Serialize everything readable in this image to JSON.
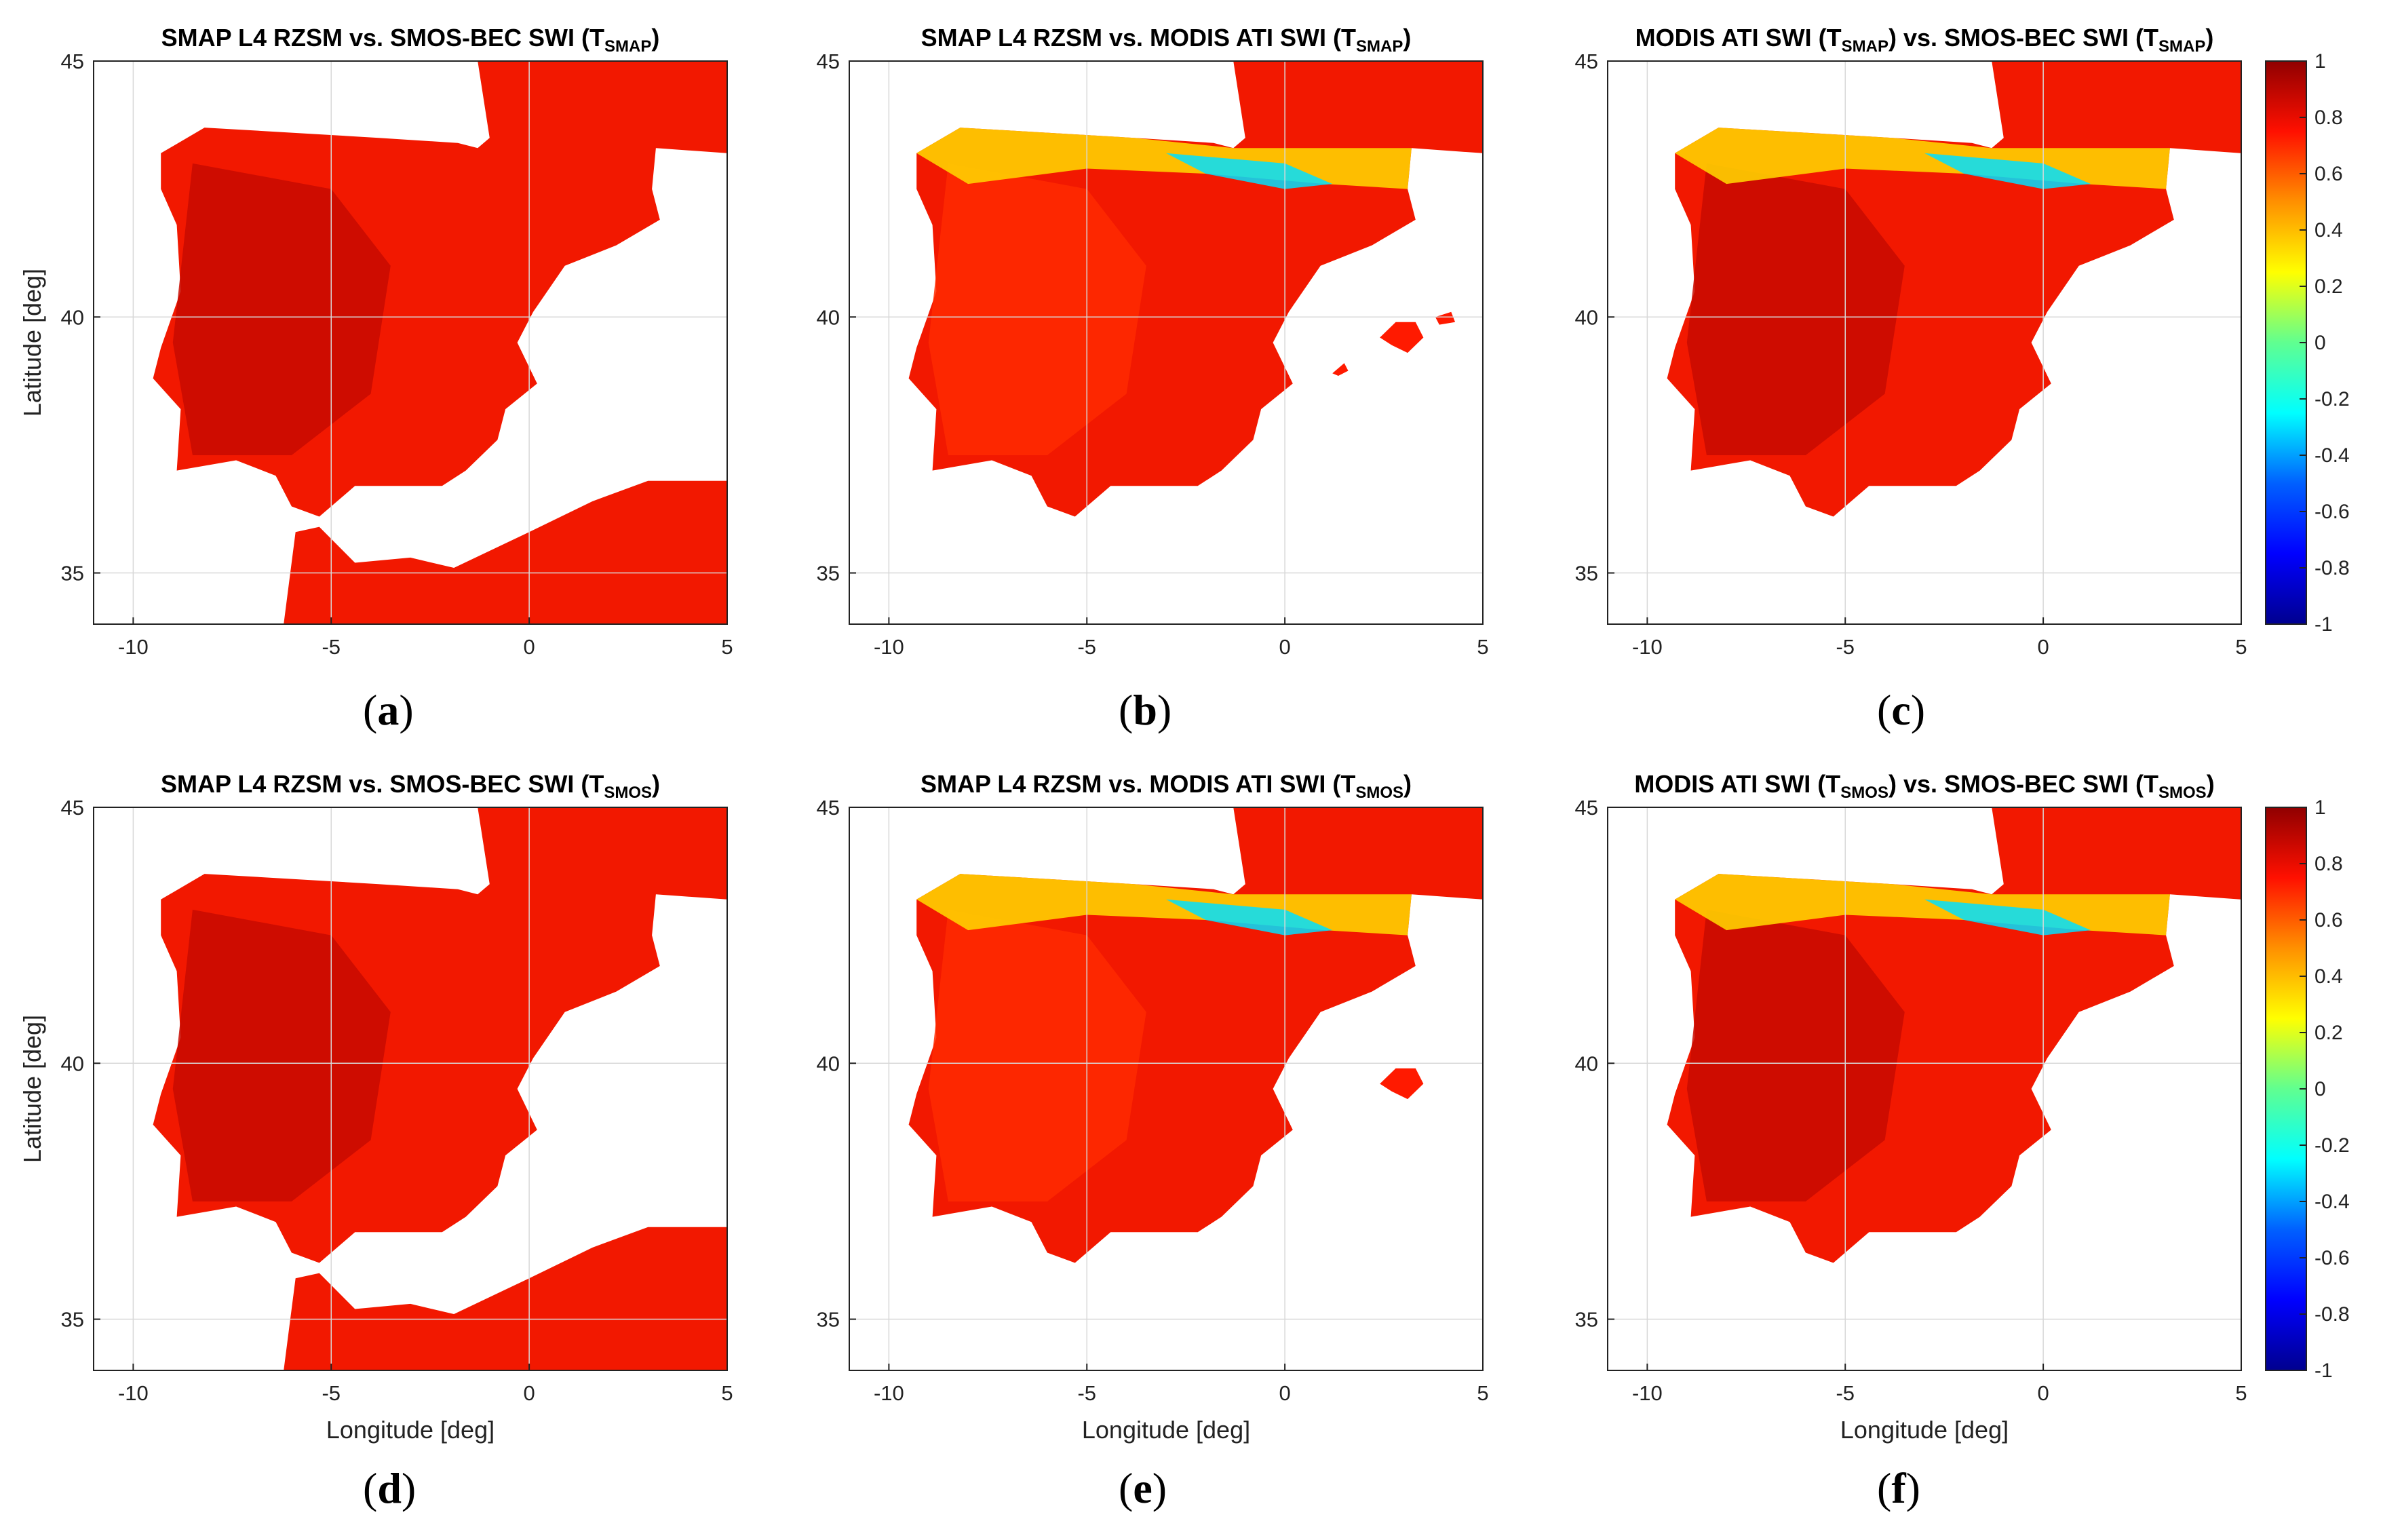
{
  "figure": {
    "panels": [
      {
        "id": "a",
        "letter": "a",
        "title_parts": [
          "SMAP L4 RZSM vs. SMOS-BEC SWI (T",
          "SMAP",
          ")"
        ],
        "show_ylabel": true,
        "show_xlabel": false,
        "show_colorbar": false
      },
      {
        "id": "b",
        "letter": "b",
        "title_parts": [
          "SMAP L4 RZSM vs. MODIS ATI SWI (T",
          "SMAP",
          ")"
        ],
        "show_ylabel": false,
        "show_xlabel": false,
        "show_colorbar": false
      },
      {
        "id": "c",
        "letter": "c",
        "title_parts": [
          "MODIS ATI SWI (T",
          "SMAP",
          ") vs. SMOS-BEC SWI (T",
          "SMAP",
          ")"
        ],
        "show_ylabel": false,
        "show_xlabel": false,
        "show_colorbar": true
      },
      {
        "id": "d",
        "letter": "d",
        "title_parts": [
          "SMAP L4 RZSM vs. SMOS-BEC SWI (T",
          "SMOS",
          ")"
        ],
        "show_ylabel": true,
        "show_xlabel": true,
        "show_colorbar": false
      },
      {
        "id": "e",
        "letter": "e",
        "title_parts": [
          "SMAP L4 RZSM vs. MODIS ATI SWI (T",
          "SMOS",
          ")"
        ],
        "show_ylabel": false,
        "show_xlabel": true,
        "show_colorbar": false
      },
      {
        "id": "f",
        "letter": "f",
        "title_parts": [
          "MODIS ATI SWI (T",
          "SMOS",
          ") vs. SMOS-BEC SWI (T",
          "SMOS",
          ")"
        ],
        "show_ylabel": false,
        "show_xlabel": true,
        "show_colorbar": true
      }
    ]
  },
  "chart_data": {
    "type": "heatmap",
    "description_units": "correlation coefficient",
    "xlabel": "Longitude [deg]",
    "ylabel": "Latitude [deg]",
    "xlim": [
      -11,
      5
    ],
    "ylim": [
      34,
      45
    ],
    "xticks": [
      -10,
      -5,
      0,
      5
    ],
    "xtick_labels": [
      "-10",
      "-5",
      "0",
      "5"
    ],
    "yticks": [
      35,
      40,
      45
    ],
    "ytick_labels": [
      "35",
      "40",
      "45"
    ],
    "grid": true,
    "colorbar": {
      "range": [
        -1,
        1
      ],
      "ticks": [
        1,
        0.8,
        0.6,
        0.4,
        0.2,
        0,
        -0.2,
        -0.4,
        -0.6,
        -0.8,
        -1
      ],
      "tick_labels": [
        "1",
        "0.8",
        "0.6",
        "0.4",
        "0.2",
        "0",
        "-0.2",
        "-0.4",
        "-0.6",
        "-0.8",
        "-1"
      ],
      "colormap": "jet",
      "colors": [
        "#00008f",
        "#0000ff",
        "#0080ff",
        "#00ffff",
        "#80ff80",
        "#ffff00",
        "#ff8000",
        "#ff0000",
        "#800000"
      ]
    },
    "typical_value_range": [
      0.6,
      1.0
    ]
  }
}
